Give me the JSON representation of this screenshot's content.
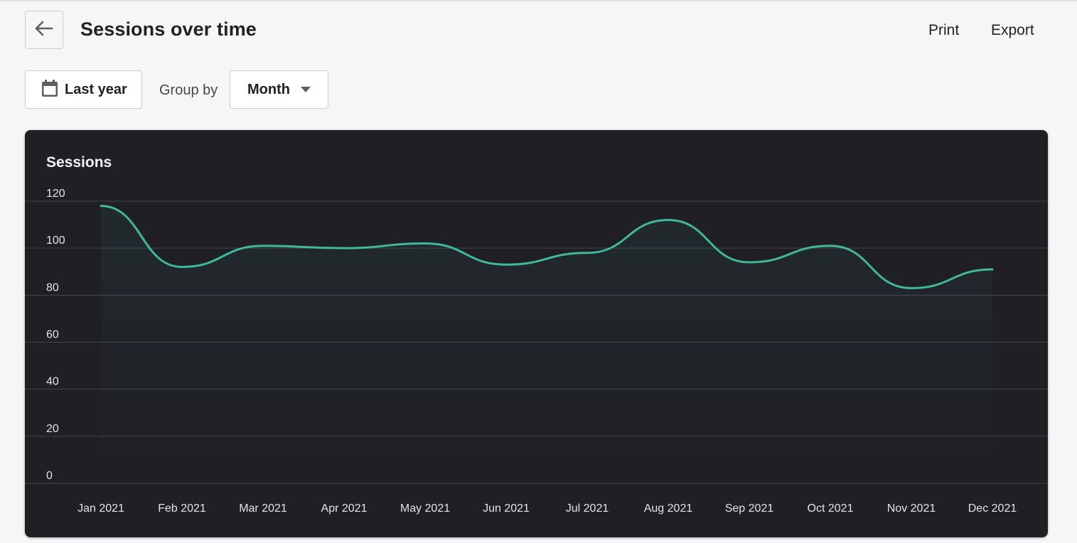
{
  "header": {
    "title": "Sessions over time",
    "print_label": "Print",
    "export_label": "Export"
  },
  "filters": {
    "date_range_label": "Last year",
    "group_by_label": "Group by",
    "group_by_value": "Month"
  },
  "colors": {
    "line": "#3fb89b",
    "card_background": "#1f1f24",
    "page_background": "#f6f6f7"
  },
  "chart_data": {
    "type": "line",
    "title": "Sessions",
    "categories": [
      "Jan 2021",
      "Feb 2021",
      "Mar 2021",
      "Apr 2021",
      "May 2021",
      "Jun 2021",
      "Jul 2021",
      "Aug 2021",
      "Sep 2021",
      "Oct 2021",
      "Nov 2021",
      "Dec 2021"
    ],
    "series": [
      {
        "values": [
          118,
          92,
          101,
          100,
          102,
          93,
          98,
          112,
          94,
          101,
          83,
          91
        ]
      }
    ],
    "ylim": [
      0,
      120
    ],
    "yticks": [
      0,
      20,
      40,
      60,
      80,
      100,
      120
    ],
    "grid": true,
    "smooth": true,
    "area_fill": true
  }
}
